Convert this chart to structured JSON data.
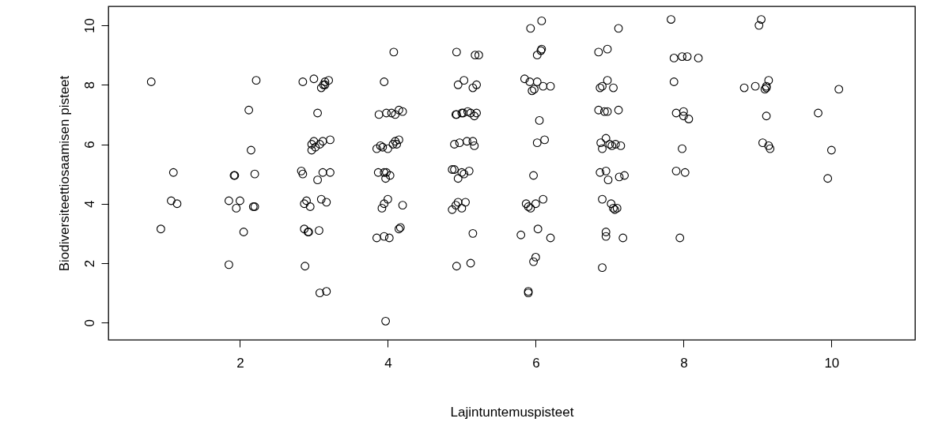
{
  "chart_data": {
    "type": "scatter",
    "xlabel": "Lajintuntemuspisteet",
    "ylabel": "Biodiversiteettiosaamisen pisteet",
    "xlim": [
      0.22,
      11.13
    ],
    "ylim": [
      -0.58,
      10.64
    ],
    "xticks": [
      2,
      4,
      6,
      8,
      10
    ],
    "yticks": [
      0,
      2,
      4,
      6,
      8,
      10
    ],
    "grid": false,
    "marker": "circle",
    "series": [
      {
        "color": "#000000",
        "x": [
          0.8,
          0.93,
          1.07,
          1.1,
          1.15,
          1.85,
          1.85,
          1.92,
          1.93,
          1.95,
          2.0,
          2.05,
          2.12,
          2.15,
          2.18,
          2.2,
          2.2,
          2.22,
          2.85,
          2.83,
          2.85,
          2.87,
          2.87,
          2.88,
          2.9,
          2.92,
          2.93,
          2.95,
          2.97,
          2.97,
          3.0,
          3.0,
          3.02,
          3.05,
          3.05,
          3.07,
          3.08,
          3.08,
          3.1,
          3.1,
          3.12,
          3.12,
          3.13,
          3.15,
          3.15,
          3.17,
          3.17,
          3.2,
          3.22,
          3.22,
          3.85,
          3.85,
          3.87,
          3.88,
          3.9,
          3.92,
          3.93,
          3.95,
          3.95,
          3.95,
          3.95,
          3.97,
          3.97,
          3.98,
          3.98,
          4.0,
          4.0,
          4.02,
          4.03,
          4.05,
          4.07,
          4.08,
          4.1,
          4.1,
          4.12,
          4.15,
          4.15,
          4.15,
          4.17,
          4.2,
          4.2,
          4.87,
          4.87,
          4.9,
          4.9,
          4.92,
          4.92,
          4.93,
          4.93,
          4.93,
          4.95,
          4.95,
          4.95,
          4.97,
          5.0,
          5.0,
          5.0,
          5.02,
          5.03,
          5.03,
          5.05,
          5.07,
          5.08,
          5.1,
          5.12,
          5.12,
          5.15,
          5.15,
          5.15,
          5.17,
          5.17,
          5.18,
          5.2,
          5.2,
          5.23,
          5.8,
          5.85,
          5.87,
          5.9,
          5.9,
          5.9,
          5.92,
          5.93,
          5.93,
          5.95,
          5.97,
          5.97,
          5.98,
          6.0,
          6.0,
          6.02,
          6.02,
          6.02,
          6.03,
          6.05,
          6.07,
          6.08,
          6.1,
          6.08,
          6.1,
          6.12,
          6.2,
          6.2,
          6.85,
          6.85,
          6.87,
          6.87,
          6.88,
          6.9,
          6.9,
          6.9,
          6.9,
          6.93,
          6.95,
          6.95,
          6.95,
          6.95,
          6.97,
          6.97,
          6.97,
          6.98,
          7.0,
          7.02,
          7.03,
          7.05,
          7.05,
          7.07,
          7.08,
          7.1,
          7.12,
          7.12,
          7.13,
          7.15,
          7.18,
          7.2,
          7.83,
          7.87,
          7.87,
          7.9,
          7.9,
          7.95,
          7.98,
          7.98,
          8.0,
          8.0,
          8.02,
          8.05,
          8.07,
          8.2,
          8.82,
          8.97,
          9.02,
          9.05,
          9.07,
          9.1,
          9.12,
          9.12,
          9.12,
          9.15,
          9.15,
          9.17,
          9.82,
          9.95,
          10.0,
          10.1
        ],
        "values": [
          8.1,
          3.15,
          4.1,
          5.05,
          4.0,
          1.95,
          4.1,
          4.95,
          4.95,
          3.85,
          4.1,
          3.05,
          7.15,
          5.8,
          3.9,
          3.9,
          5.0,
          8.15,
          8.1,
          5.1,
          5.0,
          4.0,
          3.15,
          1.9,
          4.1,
          3.05,
          3.05,
          3.9,
          5.8,
          6.0,
          8.2,
          6.1,
          5.9,
          7.05,
          4.8,
          3.1,
          1.0,
          6.0,
          7.9,
          4.15,
          6.1,
          5.05,
          8.0,
          8.1,
          8.0,
          1.05,
          4.05,
          8.15,
          5.05,
          6.15,
          2.85,
          5.85,
          5.05,
          7.0,
          5.95,
          3.85,
          5.9,
          4.0,
          8.1,
          2.9,
          5.05,
          4.85,
          0.05,
          5.05,
          7.05,
          4.15,
          5.85,
          2.85,
          4.95,
          7.05,
          6.0,
          9.1,
          7.0,
          6.1,
          6.0,
          3.15,
          7.15,
          6.15,
          3.2,
          3.95,
          7.1,
          5.15,
          3.8,
          6.0,
          5.15,
          3.95,
          7.0,
          1.9,
          7.0,
          9.1,
          8.0,
          4.05,
          4.85,
          6.05,
          5.05,
          7.05,
          3.85,
          7.05,
          8.15,
          5.0,
          4.05,
          6.1,
          7.1,
          5.1,
          2.0,
          7.05,
          7.9,
          3.0,
          6.1,
          6.95,
          5.95,
          9.0,
          8.0,
          7.05,
          9.0,
          2.95,
          8.2,
          4.0,
          3.9,
          1.05,
          1.0,
          8.1,
          3.85,
          9.9,
          7.8,
          2.05,
          4.95,
          7.85,
          2.2,
          4.0,
          8.1,
          6.05,
          9.0,
          3.15,
          6.8,
          9.15,
          10.15,
          4.15,
          9.2,
          7.95,
          6.15,
          7.95,
          2.85,
          9.1,
          7.15,
          5.05,
          7.9,
          6.05,
          1.85,
          4.15,
          5.85,
          7.95,
          7.1,
          5.1,
          6.2,
          2.9,
          3.05,
          7.1,
          8.15,
          9.2,
          4.8,
          6.0,
          4.0,
          5.95,
          7.9,
          3.85,
          3.8,
          6.0,
          3.85,
          9.9,
          7.15,
          4.9,
          5.95,
          2.85,
          4.95,
          10.2,
          8.9,
          8.1,
          5.1,
          7.05,
          2.85,
          8.95,
          5.85,
          7.1,
          6.95,
          5.05,
          8.95,
          6.85,
          8.9,
          7.9,
          7.95,
          10.0,
          10.2,
          6.05,
          7.85,
          7.95,
          7.9,
          6.95,
          8.15,
          5.95,
          5.85,
          7.05,
          4.85,
          5.8,
          7.85
        ]
      }
    ]
  }
}
